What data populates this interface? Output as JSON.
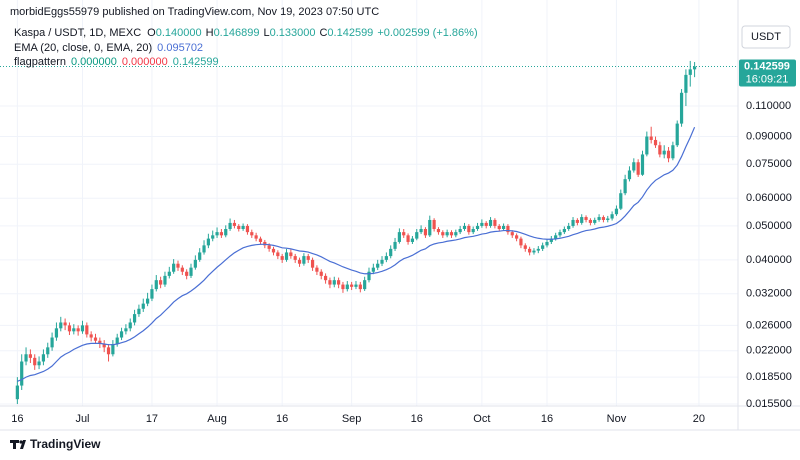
{
  "header": {
    "published": "morbidEggs55979 published on TradingView.com, Nov 19, 2023 07:50 UTC"
  },
  "chart_data": {
    "type": "candlestick",
    "title": "Kaspa / USDT, 1D, MEXC",
    "ohlc_legend": [
      {
        "key": "O",
        "value": "0.140000"
      },
      {
        "key": "H",
        "value": "0.146899"
      },
      {
        "key": "L",
        "value": "0.133000"
      },
      {
        "key": "C",
        "value": "0.142599"
      }
    ],
    "change": "+0.002599 (+1.86%)",
    "colors": {
      "up": "#26a69a",
      "down": "#ef5350"
    },
    "x": [
      "2023-06-16",
      "2023-06-17",
      "2023-06-18",
      "2023-06-19",
      "2023-06-20",
      "2023-06-21",
      "2023-06-22",
      "2023-06-23",
      "2023-06-24",
      "2023-06-25",
      "2023-06-26",
      "2023-06-27",
      "2023-06-28",
      "2023-06-29",
      "2023-06-30",
      "2023-07-01",
      "2023-07-02",
      "2023-07-03",
      "2023-07-04",
      "2023-07-05",
      "2023-07-06",
      "2023-07-07",
      "2023-07-08",
      "2023-07-09",
      "2023-07-10",
      "2023-07-11",
      "2023-07-12",
      "2023-07-13",
      "2023-07-14",
      "2023-07-15",
      "2023-07-16",
      "2023-07-17",
      "2023-07-18",
      "2023-07-19",
      "2023-07-20",
      "2023-07-21",
      "2023-07-22",
      "2023-07-23",
      "2023-07-24",
      "2023-07-25",
      "2023-07-26",
      "2023-07-27",
      "2023-07-28",
      "2023-07-29",
      "2023-07-30",
      "2023-07-31",
      "2023-08-01",
      "2023-08-02",
      "2023-08-03",
      "2023-08-04",
      "2023-08-05",
      "2023-08-06",
      "2023-08-07",
      "2023-08-08",
      "2023-08-09",
      "2023-08-10",
      "2023-08-11",
      "2023-08-12",
      "2023-08-13",
      "2023-08-14",
      "2023-08-15",
      "2023-08-16",
      "2023-08-17",
      "2023-08-18",
      "2023-08-19",
      "2023-08-20",
      "2023-08-21",
      "2023-08-22",
      "2023-08-23",
      "2023-08-24",
      "2023-08-25",
      "2023-08-26",
      "2023-08-27",
      "2023-08-28",
      "2023-08-29",
      "2023-08-30",
      "2023-08-31",
      "2023-09-01",
      "2023-09-02",
      "2023-09-03",
      "2023-09-04",
      "2023-09-05",
      "2023-09-06",
      "2023-09-07",
      "2023-09-08",
      "2023-09-09",
      "2023-09-10",
      "2023-09-11",
      "2023-09-12",
      "2023-09-13",
      "2023-09-14",
      "2023-09-15",
      "2023-09-16",
      "2023-09-17",
      "2023-09-18",
      "2023-09-19",
      "2023-09-20",
      "2023-09-21",
      "2023-09-22",
      "2023-09-23",
      "2023-09-24",
      "2023-09-25",
      "2023-09-26",
      "2023-09-27",
      "2023-09-28",
      "2023-09-29",
      "2023-09-30",
      "2023-10-01",
      "2023-10-02",
      "2023-10-03",
      "2023-10-04",
      "2023-10-05",
      "2023-10-06",
      "2023-10-07",
      "2023-10-08",
      "2023-10-09",
      "2023-10-10",
      "2023-10-11",
      "2023-10-12",
      "2023-10-13",
      "2023-10-14",
      "2023-10-15",
      "2023-10-16",
      "2023-10-17",
      "2023-10-18",
      "2023-10-19",
      "2023-10-20",
      "2023-10-21",
      "2023-10-22",
      "2023-10-23",
      "2023-10-24",
      "2023-10-25",
      "2023-10-26",
      "2023-10-27",
      "2023-10-28",
      "2023-10-29",
      "2023-10-30",
      "2023-10-31",
      "2023-11-01",
      "2023-11-02",
      "2023-11-03",
      "2023-11-04",
      "2023-11-05",
      "2023-11-06",
      "2023-11-07",
      "2023-11-08",
      "2023-11-09",
      "2023-11-10",
      "2023-11-11",
      "2023-11-12",
      "2023-11-13",
      "2023-11-14",
      "2023-11-15",
      "2023-11-16",
      "2023-11-17",
      "2023-11-18",
      "2023-11-19"
    ],
    "open": [
      0.016,
      0.0175,
      0.0205,
      0.0215,
      0.021,
      0.02,
      0.0205,
      0.0215,
      0.0225,
      0.024,
      0.0255,
      0.0265,
      0.026,
      0.025,
      0.0255,
      0.025,
      0.026,
      0.0245,
      0.024,
      0.0235,
      0.023,
      0.0225,
      0.0215,
      0.023,
      0.024,
      0.025,
      0.0255,
      0.0265,
      0.028,
      0.029,
      0.03,
      0.031,
      0.033,
      0.035,
      0.034,
      0.036,
      0.037,
      0.039,
      0.038,
      0.037,
      0.036,
      0.038,
      0.04,
      0.042,
      0.044,
      0.046,
      0.047,
      0.048,
      0.047,
      0.049,
      0.051,
      0.05,
      0.049,
      0.05,
      0.048,
      0.047,
      0.046,
      0.045,
      0.044,
      0.043,
      0.042,
      0.041,
      0.04,
      0.042,
      0.041,
      0.04,
      0.039,
      0.041,
      0.04,
      0.038,
      0.037,
      0.036,
      0.035,
      0.034,
      0.035,
      0.034,
      0.033,
      0.034,
      0.0335,
      0.034,
      0.033,
      0.035,
      0.037,
      0.038,
      0.039,
      0.04,
      0.041,
      0.043,
      0.045,
      0.048,
      0.047,
      0.045,
      0.046,
      0.048,
      0.049,
      0.047,
      0.052,
      0.049,
      0.048,
      0.047,
      0.048,
      0.047,
      0.048,
      0.049,
      0.05,
      0.048,
      0.049,
      0.05,
      0.051,
      0.05,
      0.052,
      0.05,
      0.049,
      0.05,
      0.048,
      0.047,
      0.046,
      0.044,
      0.043,
      0.042,
      0.0425,
      0.043,
      0.044,
      0.045,
      0.046,
      0.047,
      0.048,
      0.049,
      0.05,
      0.052,
      0.051,
      0.053,
      0.052,
      0.051,
      0.052,
      0.053,
      0.052,
      0.0525,
      0.054,
      0.056,
      0.062,
      0.068,
      0.072,
      0.076,
      0.07,
      0.08,
      0.09,
      0.088,
      0.085,
      0.08,
      0.082,
      0.078,
      0.085,
      0.098,
      0.12,
      0.135,
      0.14
    ],
    "high": [
      0.0185,
      0.0215,
      0.0225,
      0.0222,
      0.0215,
      0.0212,
      0.0222,
      0.0232,
      0.0248,
      0.0265,
      0.0275,
      0.0272,
      0.0265,
      0.0262,
      0.026,
      0.0268,
      0.0265,
      0.025,
      0.0246,
      0.024,
      0.0236,
      0.023,
      0.0236,
      0.0246,
      0.0256,
      0.0262,
      0.0272,
      0.0288,
      0.0298,
      0.031,
      0.0322,
      0.034,
      0.0362,
      0.0358,
      0.037,
      0.0382,
      0.0402,
      0.0398,
      0.0386,
      0.0376,
      0.039,
      0.0412,
      0.0432,
      0.0455,
      0.0475,
      0.0485,
      0.0495,
      0.049,
      0.0502,
      0.0525,
      0.052,
      0.0506,
      0.0508,
      0.0506,
      0.0488,
      0.0478,
      0.0466,
      0.0456,
      0.0446,
      0.0436,
      0.0426,
      0.0416,
      0.043,
      0.0428,
      0.0416,
      0.0406,
      0.0418,
      0.0416,
      0.0406,
      0.0386,
      0.0376,
      0.0366,
      0.0356,
      0.0358,
      0.0356,
      0.0346,
      0.0348,
      0.0346,
      0.0348,
      0.0346,
      0.0358,
      0.038,
      0.039,
      0.04,
      0.041,
      0.042,
      0.044,
      0.0462,
      0.0492,
      0.049,
      0.0476,
      0.0468,
      0.049,
      0.0502,
      0.0496,
      0.0535,
      0.0526,
      0.0496,
      0.0486,
      0.0488,
      0.0486,
      0.0488,
      0.05,
      0.051,
      0.0506,
      0.0498,
      0.051,
      0.0522,
      0.0516,
      0.053,
      0.0526,
      0.0506,
      0.0508,
      0.0506,
      0.0486,
      0.0476,
      0.0466,
      0.0446,
      0.0436,
      0.0432,
      0.0438,
      0.0448,
      0.0458,
      0.0468,
      0.0478,
      0.0488,
      0.0498,
      0.051,
      0.053,
      0.0526,
      0.054,
      0.0536,
      0.0526,
      0.0528,
      0.054,
      0.0536,
      0.0534,
      0.055,
      0.0572,
      0.0635,
      0.07,
      0.074,
      0.078,
      0.0775,
      0.082,
      0.093,
      0.096,
      0.09,
      0.087,
      0.085,
      0.084,
      0.087,
      0.1,
      0.123,
      0.14,
      0.148,
      0.146899
    ],
    "low": [
      0.0155,
      0.017,
      0.02,
      0.0203,
      0.0194,
      0.0195,
      0.02,
      0.021,
      0.022,
      0.0235,
      0.025,
      0.0252,
      0.0244,
      0.0245,
      0.0243,
      0.0246,
      0.024,
      0.0234,
      0.023,
      0.0224,
      0.0218,
      0.0205,
      0.0212,
      0.0226,
      0.0236,
      0.0245,
      0.025,
      0.026,
      0.0275,
      0.0284,
      0.0295,
      0.0305,
      0.0325,
      0.0332,
      0.0335,
      0.0354,
      0.0365,
      0.0372,
      0.0362,
      0.0352,
      0.0355,
      0.0375,
      0.0395,
      0.0414,
      0.0432,
      0.0452,
      0.0462,
      0.0462,
      0.0464,
      0.0484,
      0.0492,
      0.0482,
      0.0484,
      0.0472,
      0.0462,
      0.0452,
      0.0442,
      0.0432,
      0.0422,
      0.0412,
      0.0402,
      0.0392,
      0.0395,
      0.0403,
      0.0392,
      0.0382,
      0.0385,
      0.0392,
      0.0372,
      0.0362,
      0.0352,
      0.0342,
      0.0332,
      0.0334,
      0.0332,
      0.0322,
      0.0325,
      0.0328,
      0.033,
      0.0323,
      0.0326,
      0.0345,
      0.0364,
      0.0374,
      0.0384,
      0.0394,
      0.0404,
      0.0424,
      0.0445,
      0.0462,
      0.0442,
      0.0444,
      0.0455,
      0.0474,
      0.0462,
      0.0465,
      0.0482,
      0.0472,
      0.0462,
      0.0464,
      0.0462,
      0.0464,
      0.0474,
      0.0484,
      0.0472,
      0.0474,
      0.0484,
      0.0494,
      0.0492,
      0.0494,
      0.0492,
      0.0482,
      0.0484,
      0.0472,
      0.0462,
      0.0452,
      0.0432,
      0.0422,
      0.0412,
      0.0414,
      0.0418,
      0.0424,
      0.0434,
      0.0444,
      0.0454,
      0.0464,
      0.0474,
      0.0484,
      0.0494,
      0.0502,
      0.0504,
      0.0512,
      0.0502,
      0.0504,
      0.0514,
      0.0512,
      0.0512,
      0.0518,
      0.0534,
      0.0555,
      0.0612,
      0.067,
      0.071,
      0.069,
      0.0695,
      0.079,
      0.086,
      0.0835,
      0.0785,
      0.078,
      0.076,
      0.077,
      0.084,
      0.096,
      0.11,
      0.125,
      0.133
    ],
    "close": [
      0.0175,
      0.0205,
      0.0215,
      0.021,
      0.02,
      0.0205,
      0.0215,
      0.0225,
      0.024,
      0.0255,
      0.0265,
      0.026,
      0.025,
      0.0255,
      0.025,
      0.026,
      0.0245,
      0.024,
      0.0235,
      0.023,
      0.0225,
      0.0215,
      0.023,
      0.024,
      0.025,
      0.0255,
      0.0265,
      0.028,
      0.029,
      0.03,
      0.031,
      0.033,
      0.035,
      0.034,
      0.036,
      0.037,
      0.039,
      0.038,
      0.037,
      0.036,
      0.038,
      0.04,
      0.042,
      0.044,
      0.046,
      0.047,
      0.048,
      0.047,
      0.049,
      0.051,
      0.05,
      0.049,
      0.05,
      0.048,
      0.047,
      0.046,
      0.045,
      0.044,
      0.043,
      0.042,
      0.041,
      0.04,
      0.042,
      0.041,
      0.04,
      0.039,
      0.041,
      0.04,
      0.038,
      0.037,
      0.036,
      0.035,
      0.034,
      0.035,
      0.034,
      0.033,
      0.034,
      0.0335,
      0.034,
      0.033,
      0.035,
      0.037,
      0.038,
      0.039,
      0.04,
      0.041,
      0.043,
      0.045,
      0.048,
      0.047,
      0.045,
      0.046,
      0.048,
      0.049,
      0.047,
      0.052,
      0.049,
      0.048,
      0.047,
      0.048,
      0.047,
      0.048,
      0.049,
      0.05,
      0.048,
      0.049,
      0.05,
      0.051,
      0.05,
      0.052,
      0.05,
      0.049,
      0.05,
      0.048,
      0.047,
      0.046,
      0.044,
      0.043,
      0.042,
      0.0425,
      0.043,
      0.044,
      0.045,
      0.046,
      0.047,
      0.048,
      0.049,
      0.05,
      0.052,
      0.051,
      0.053,
      0.052,
      0.051,
      0.052,
      0.053,
      0.052,
      0.0525,
      0.054,
      0.056,
      0.062,
      0.068,
      0.072,
      0.076,
      0.07,
      0.08,
      0.09,
      0.088,
      0.085,
      0.08,
      0.082,
      0.078,
      0.085,
      0.098,
      0.12,
      0.135,
      0.14,
      0.142599
    ],
    "series": [
      {
        "name": "EMA (20, close, 0, EMA, 20)",
        "value_label": "0.095702",
        "color": "#4a6fd4",
        "values": [
          0.018,
          0.0182,
          0.0185,
          0.0187,
          0.0188,
          0.019,
          0.0192,
          0.0195,
          0.0199,
          0.0205,
          0.0211,
          0.0215,
          0.0218,
          0.0222,
          0.0225,
          0.0228,
          0.023,
          0.0231,
          0.0231,
          0.0231,
          0.023,
          0.0229,
          0.0229,
          0.023,
          0.0232,
          0.0234,
          0.0237,
          0.0241,
          0.0246,
          0.0251,
          0.0257,
          0.0264,
          0.0272,
          0.0278,
          0.0286,
          0.0294,
          0.0303,
          0.031,
          0.0316,
          0.032,
          0.0326,
          0.0333,
          0.0341,
          0.035,
          0.0361,
          0.0371,
          0.0381,
          0.039,
          0.04,
          0.041,
          0.0419,
          0.0426,
          0.0433,
          0.0437,
          0.044,
          0.0442,
          0.0443,
          0.0443,
          0.0442,
          0.044,
          0.0437,
          0.0433,
          0.0432,
          0.043,
          0.0427,
          0.0424,
          0.0423,
          0.0421,
          0.0417,
          0.0413,
          0.0408,
          0.0402,
          0.0396,
          0.0392,
          0.0387,
          0.0382,
          0.0378,
          0.0374,
          0.0371,
          0.0367,
          0.0365,
          0.0365,
          0.0366,
          0.0368,
          0.0371,
          0.0375,
          0.038,
          0.0387,
          0.0396,
          0.0403,
          0.0407,
          0.0412,
          0.0419,
          0.0426,
          0.043,
          0.0439,
          0.0444,
          0.0447,
          0.0449,
          0.0452,
          0.0454,
          0.0456,
          0.0459,
          0.0463,
          0.0465,
          0.0467,
          0.047,
          0.0474,
          0.0476,
          0.048,
          0.0482,
          0.0483,
          0.0485,
          0.0485,
          0.0484,
          0.0482,
          0.0478,
          0.0473,
          0.0468,
          0.0464,
          0.0461,
          0.0459,
          0.0458,
          0.0458,
          0.0459,
          0.0461,
          0.0464,
          0.0467,
          0.0472,
          0.0476,
          0.0481,
          0.0485,
          0.0487,
          0.049,
          0.0494,
          0.0496,
          0.0499,
          0.0503,
          0.0508,
          0.0519,
          0.0534,
          0.0552,
          0.0572,
          0.0584,
          0.0605,
          0.0633,
          0.0656,
          0.0675,
          0.0687,
          0.07,
          0.0708,
          0.0721,
          0.0746,
          0.0789,
          0.0842,
          0.0895,
          0.095702
        ]
      }
    ],
    "indicator": {
      "name": "flagpattern",
      "values": [
        "0.000000",
        "0.000000",
        "0.142599"
      ],
      "colors": [
        "#089981",
        "#f23645",
        "#26a69a"
      ]
    },
    "last_price": {
      "label": "0.142599",
      "countdown": "16:09:21"
    },
    "currency": "USDT",
    "log_scale": true,
    "grid": true,
    "xlim": [
      "2023-06-12",
      "2023-11-29"
    ],
    "ylim": [
      0.0153,
      0.2209
    ],
    "xticks": [
      {
        "value": "2023-06-16",
        "label": "16"
      },
      {
        "value": "2023-07-01",
        "label": "Jul"
      },
      {
        "value": "2023-07-17",
        "label": "17"
      },
      {
        "value": "2023-08-01",
        "label": "Aug"
      },
      {
        "value": "2023-08-16",
        "label": "16"
      },
      {
        "value": "2023-09-01",
        "label": "Sep"
      },
      {
        "value": "2023-09-16",
        "label": "16"
      },
      {
        "value": "2023-10-01",
        "label": "Oct"
      },
      {
        "value": "2023-10-16",
        "label": "16"
      },
      {
        "value": "2023-11-01",
        "label": "Nov"
      },
      {
        "value": "2023-11-20",
        "label": "20"
      }
    ],
    "yticks": [
      {
        "value": 0.11,
        "label": "0.110000"
      },
      {
        "value": 0.09,
        "label": "0.090000"
      },
      {
        "value": 0.075,
        "label": "0.075000"
      },
      {
        "value": 0.06,
        "label": "0.060000"
      },
      {
        "value": 0.05,
        "label": "0.050000"
      },
      {
        "value": 0.04,
        "label": "0.040000"
      },
      {
        "value": 0.032,
        "label": "0.032000"
      },
      {
        "value": 0.026,
        "label": "0.026000"
      },
      {
        "value": 0.022,
        "label": "0.022000"
      },
      {
        "value": 0.0185,
        "label": "0.018500"
      },
      {
        "value": 0.0155,
        "label": "0.015500"
      }
    ]
  },
  "footer": {
    "brand": "TradingView"
  }
}
